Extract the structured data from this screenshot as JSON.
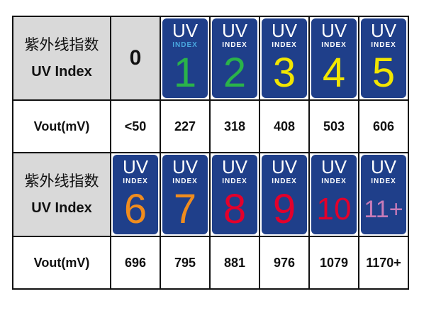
{
  "header_label": {
    "cn": "紫外线指数",
    "en": "UV Index"
  },
  "vout_label": "Vout(mV)",
  "badge": {
    "uv": "UV",
    "index": "INDEX"
  },
  "rows": [
    {
      "cells": [
        {
          "uv": "0",
          "vout": "<50"
        },
        {
          "uv": "1",
          "vout": "227",
          "color": "#2ab34a",
          "index_color": "#4aa8e0"
        },
        {
          "uv": "2",
          "vout": "318",
          "color": "#2ab34a"
        },
        {
          "uv": "3",
          "vout": "408",
          "color": "#f2e600"
        },
        {
          "uv": "4",
          "vout": "503",
          "color": "#f2e600"
        },
        {
          "uv": "5",
          "vout": "606",
          "color": "#f2e600"
        }
      ]
    },
    {
      "cells": [
        {
          "uv": "6",
          "vout": "696",
          "color": "#f08c1e"
        },
        {
          "uv": "7",
          "vout": "795",
          "color": "#f08c1e"
        },
        {
          "uv": "8",
          "vout": "881",
          "color": "#e3002b"
        },
        {
          "uv": "9",
          "vout": "976",
          "color": "#e3002b"
        },
        {
          "uv": "10",
          "vout": "1079",
          "color": "#e3002b"
        },
        {
          "uv": "11+",
          "vout": "1170+",
          "color": "#c77bb8"
        }
      ]
    }
  ]
}
